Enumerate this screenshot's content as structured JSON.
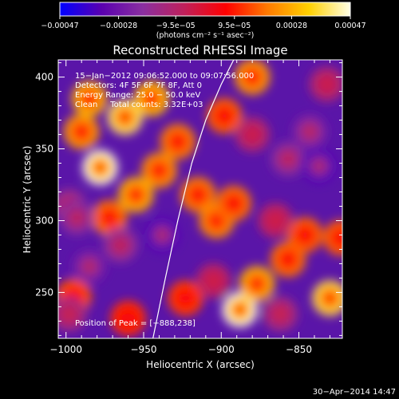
{
  "chart_data": {
    "type": "heatmap",
    "title": "Reconstructed RHESSI Image",
    "xlabel": "Heliocentric X (arcsec)",
    "ylabel": "Heliocentric Y (arcsec)",
    "xlim": [
      -1005,
      -822
    ],
    "ylim": [
      218,
      412
    ],
    "x_ticks": [
      -1000,
      -950,
      -900,
      -850
    ],
    "y_ticks": [
      250,
      300,
      350,
      400
    ],
    "x_tick_labels": [
      "−1000",
      "−950",
      "−900",
      "−850"
    ],
    "y_tick_labels": [
      "250",
      "300",
      "350",
      "400"
    ],
    "colorbar": {
      "range": [
        -0.00047,
        0.00047
      ],
      "ticks": [
        -0.00047,
        -0.00028,
        -9.5e-05,
        9.5e-05,
        0.00028,
        0.00047
      ],
      "tick_labels": [
        "−0.00047",
        "−0.00028",
        "−9.5e−05",
        "9.5e−05",
        "0.00028",
        "0.00047"
      ],
      "unit_label": "(photons cm⁻² s⁻¹ asec⁻²)",
      "colors": [
        "#0000ff",
        "#5a00b0",
        "#8a2fa0",
        "#c0205a",
        "#ff0000",
        "#ff7a00",
        "#ffd000",
        "#ffffe6"
      ]
    },
    "annotations": [
      "15−Jan−2012 09:06:52.000 to 09:07:56.000",
      "Detectors: 4F 5F 6F 7F 8F, Att 0",
      "Energy Range: 25.0 − 50.0 keV",
      "Clean     Total counts: 3.32E+03"
    ],
    "peak_label": "Position of Peak = [−888,238]",
    "peak_position": [
      -888,
      238
    ],
    "hotspots": [
      {
        "x": -978,
        "y": 337,
        "value": 0.00047
      },
      {
        "x": -962,
        "y": 372,
        "value": 0.0004
      },
      {
        "x": -945,
        "y": 385,
        "value": 0.00032
      },
      {
        "x": -985,
        "y": 385,
        "value": 0.0003
      },
      {
        "x": -990,
        "y": 362,
        "value": 0.00026
      },
      {
        "x": -955,
        "y": 318,
        "value": 0.0003
      },
      {
        "x": -940,
        "y": 335,
        "value": 0.00025
      },
      {
        "x": -928,
        "y": 355,
        "value": 0.00022
      },
      {
        "x": -972,
        "y": 302,
        "value": 0.0002
      },
      {
        "x": -915,
        "y": 318,
        "value": 0.00022
      },
      {
        "x": -903,
        "y": 300,
        "value": 0.00024
      },
      {
        "x": -892,
        "y": 312,
        "value": 0.0002
      },
      {
        "x": -888,
        "y": 238,
        "value": 0.00047
      },
      {
        "x": -877,
        "y": 256,
        "value": 0.0003
      },
      {
        "x": -830,
        "y": 246,
        "value": 0.00038
      },
      {
        "x": -857,
        "y": 273,
        "value": 0.0002
      },
      {
        "x": -846,
        "y": 290,
        "value": 0.00018
      },
      {
        "x": -823,
        "y": 288,
        "value": 0.00018
      },
      {
        "x": -880,
        "y": 400,
        "value": 0.00026
      },
      {
        "x": -898,
        "y": 373,
        "value": 0.00018
      },
      {
        "x": -923,
        "y": 246,
        "value": 0.00014
      },
      {
        "x": -995,
        "y": 247,
        "value": 0.00016
      },
      {
        "x": -960,
        "y": 232,
        "value": 0.00012
      },
      {
        "x": -998,
        "y": 310,
        "value": -0.00018
      },
      {
        "x": -965,
        "y": 283,
        "value": -0.0002
      },
      {
        "x": -938,
        "y": 290,
        "value": -0.00035
      },
      {
        "x": -985,
        "y": 268,
        "value": -0.00028
      },
      {
        "x": -993,
        "y": 302,
        "value": -0.00022
      },
      {
        "x": -857,
        "y": 343,
        "value": -0.00022
      },
      {
        "x": -837,
        "y": 338,
        "value": -0.00035
      },
      {
        "x": -843,
        "y": 362,
        "value": -0.00025
      },
      {
        "x": -880,
        "y": 360,
        "value": -0.00012
      },
      {
        "x": -832,
        "y": 395,
        "value": -0.00012
      },
      {
        "x": -865,
        "y": 300,
        "value": -0.0001
      },
      {
        "x": -862,
        "y": 235,
        "value": -0.00015
      },
      {
        "x": -905,
        "y": 258,
        "value": -0.0001
      },
      {
        "x": -998,
        "y": 235,
        "value": -0.00015
      }
    ],
    "limb_arc": [
      [
        -944,
        218
      ],
      [
        -936,
        260
      ],
      [
        -928,
        300
      ],
      [
        -919,
        340
      ],
      [
        -910,
        370
      ],
      [
        -900,
        395
      ],
      [
        -892,
        412
      ]
    ],
    "footer_date": "30−Apr−2014 14:47"
  }
}
